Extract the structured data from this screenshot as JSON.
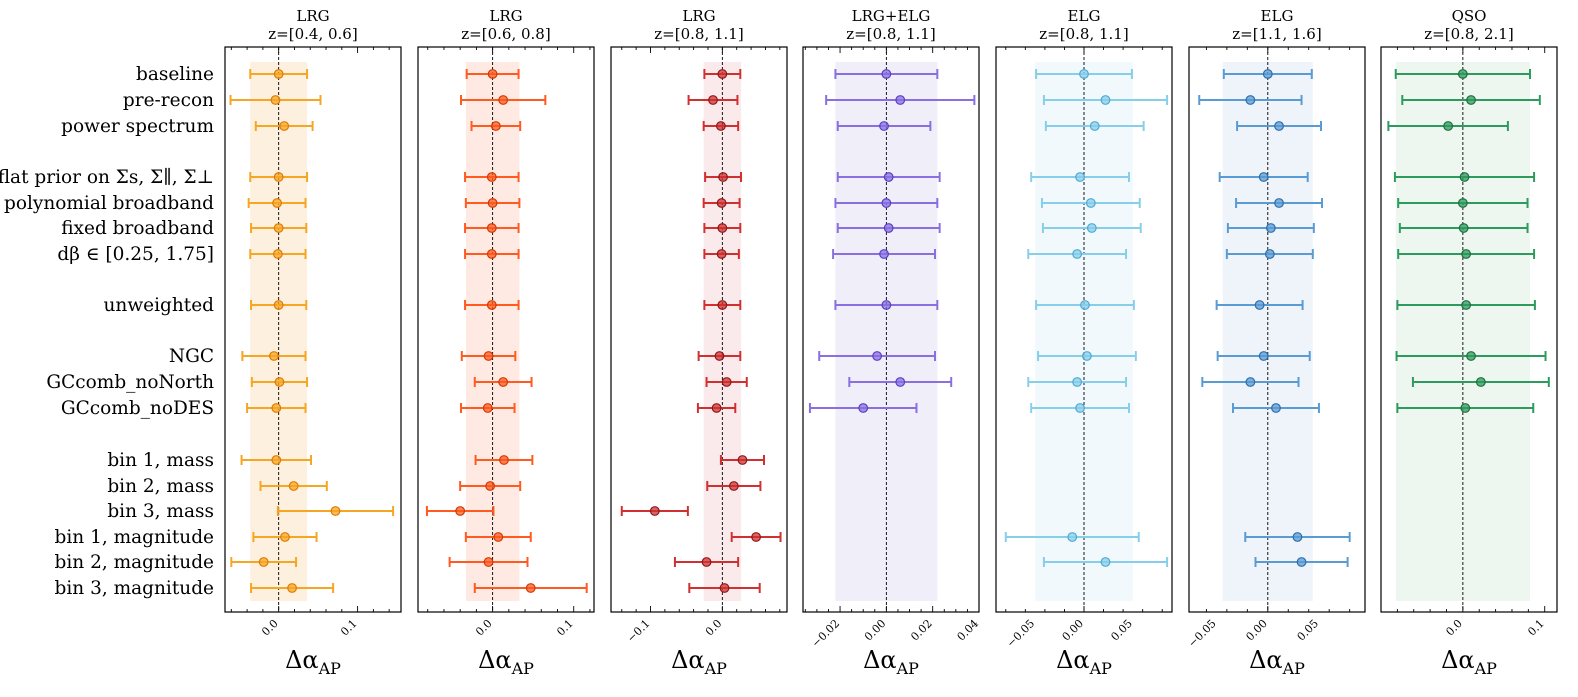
{
  "chart_data": {
    "type": "errorbar",
    "row_labels": [
      "baseline",
      "pre-recon",
      "power spectrum",
      "flat prior on Σs, Σ∥, Σ⊥",
      "polynomial broadband",
      "fixed broadband",
      "dβ ∈ [0.25, 1.75]",
      "unweighted",
      "NGC",
      "GCcomb_noNorth",
      "GCcomb_noDES",
      "bin 1, mass",
      "bin 2, mass",
      "bin 3, mass",
      "bin 1, magnitude",
      "bin 2, magnitude",
      "bin 3, magnitude"
    ],
    "row_groups": [
      0,
      0,
      0,
      1,
      1,
      1,
      1,
      2,
      3,
      3,
      3,
      4,
      4,
      4,
      4,
      4,
      4
    ],
    "xlabel_main": "Δα",
    "xlabel_sub": "AP",
    "panels": [
      {
        "title_line1": "LRG",
        "title_line2": "z=[0.4, 0.6]",
        "color": "#f5a623",
        "edge": "#e07b00",
        "band_color": "#fde3c2",
        "xlim": [
          -0.068,
          0.155
        ],
        "band": [
          -0.036,
          0.036
        ],
        "ticks": [
          0.0,
          0.1
        ],
        "tick_labels": [
          "0.0",
          "0.1"
        ],
        "points": [
          {
            "row": 0,
            "value": 0.0,
            "err": 0.036
          },
          {
            "row": 1,
            "value": -0.004,
            "err": 0.057
          },
          {
            "row": 2,
            "value": 0.007,
            "err": 0.036
          },
          {
            "row": 3,
            "value": 0.0,
            "err": 0.036
          },
          {
            "row": 4,
            "value": -0.002,
            "err": 0.036
          },
          {
            "row": 5,
            "value": 0.0,
            "err": 0.035
          },
          {
            "row": 6,
            "value": -0.001,
            "err": 0.035
          },
          {
            "row": 7,
            "value": 0.0,
            "err": 0.035
          },
          {
            "row": 8,
            "value": -0.006,
            "err": 0.04
          },
          {
            "row": 9,
            "value": 0.001,
            "err": 0.035
          },
          {
            "row": 10,
            "value": -0.003,
            "err": 0.037
          },
          {
            "row": 11,
            "value": -0.003,
            "err": 0.044
          },
          {
            "row": 12,
            "value": 0.019,
            "err": 0.042
          },
          {
            "row": 13,
            "value": 0.072,
            "err": 0.073
          },
          {
            "row": 14,
            "value": 0.008,
            "err": 0.04
          },
          {
            "row": 15,
            "value": -0.019,
            "err": 0.041
          },
          {
            "row": 16,
            "value": 0.017,
            "err": 0.052
          }
        ]
      },
      {
        "title_line1": "LRG",
        "title_line2": "z=[0.6, 0.8]",
        "color": "#ff5a20",
        "edge": "#d13a00",
        "band_color": "#fdd9cc",
        "xlim": [
          -0.092,
          0.125
        ],
        "band": [
          -0.033,
          0.033
        ],
        "ticks": [
          0.0,
          0.1
        ],
        "tick_labels": [
          "0.0",
          "0.1"
        ],
        "points": [
          {
            "row": 0,
            "value": 0.0,
            "err": 0.032
          },
          {
            "row": 1,
            "value": 0.013,
            "err": 0.052
          },
          {
            "row": 2,
            "value": 0.004,
            "err": 0.03
          },
          {
            "row": 3,
            "value": -0.001,
            "err": 0.033
          },
          {
            "row": 4,
            "value": 0.0,
            "err": 0.033
          },
          {
            "row": 5,
            "value": -0.001,
            "err": 0.033
          },
          {
            "row": 6,
            "value": -0.001,
            "err": 0.033
          },
          {
            "row": 7,
            "value": -0.001,
            "err": 0.033
          },
          {
            "row": 8,
            "value": -0.005,
            "err": 0.033
          },
          {
            "row": 9,
            "value": 0.013,
            "err": 0.035
          },
          {
            "row": 10,
            "value": -0.006,
            "err": 0.033
          },
          {
            "row": 11,
            "value": 0.014,
            "err": 0.035
          },
          {
            "row": 12,
            "value": -0.003,
            "err": 0.037
          },
          {
            "row": 13,
            "value": -0.04,
            "err": 0.041
          },
          {
            "row": 14,
            "value": 0.007,
            "err": 0.04
          },
          {
            "row": 15,
            "value": -0.005,
            "err": 0.048
          },
          {
            "row": 16,
            "value": 0.047,
            "err": 0.069
          }
        ]
      },
      {
        "title_line1": "LRG",
        "title_line2": "z=[0.8, 1.1]",
        "color": "#d03030",
        "edge": "#8b1a1a",
        "band_color": "#f6d9dc",
        "xlim": [
          -0.155,
          0.09
        ],
        "band": [
          -0.026,
          0.026
        ],
        "ticks": [
          -0.1,
          0.0
        ],
        "tick_labels": [
          "−0.1",
          "0.0"
        ],
        "points": [
          {
            "row": 0,
            "value": 0.0,
            "err": 0.025
          },
          {
            "row": 1,
            "value": -0.013,
            "err": 0.034
          },
          {
            "row": 2,
            "value": -0.002,
            "err": 0.024
          },
          {
            "row": 3,
            "value": 0.001,
            "err": 0.025
          },
          {
            "row": 4,
            "value": -0.001,
            "err": 0.025
          },
          {
            "row": 5,
            "value": 0.0,
            "err": 0.025
          },
          {
            "row": 6,
            "value": -0.001,
            "err": 0.024
          },
          {
            "row": 7,
            "value": 0.0,
            "err": 0.025
          },
          {
            "row": 8,
            "value": -0.004,
            "err": 0.029
          },
          {
            "row": 9,
            "value": 0.006,
            "err": 0.028
          },
          {
            "row": 10,
            "value": -0.008,
            "err": 0.026
          },
          {
            "row": 11,
            "value": 0.028,
            "err": 0.03
          },
          {
            "row": 12,
            "value": 0.016,
            "err": 0.037
          },
          {
            "row": 13,
            "value": -0.094,
            "err": 0.046
          },
          {
            "row": 14,
            "value": 0.047,
            "err": 0.034
          },
          {
            "row": 15,
            "value": -0.022,
            "err": 0.044
          },
          {
            "row": 16,
            "value": 0.003,
            "err": 0.049
          }
        ]
      },
      {
        "title_line1": "LRG+ELG",
        "title_line2": "z=[0.8, 1.1]",
        "color": "#8a6fe0",
        "edge": "#5b3fc4",
        "band_color": "#e4e0f4",
        "xlim": [
          -0.036,
          0.04
        ],
        "band": [
          -0.022,
          0.022
        ],
        "ticks": [
          -0.02,
          0.0,
          0.02,
          0.04
        ],
        "tick_labels": [
          "−0.02",
          "0.00",
          "0.02",
          "0.04"
        ],
        "points": [
          {
            "row": 0,
            "value": 0.0,
            "err": 0.022
          },
          {
            "row": 1,
            "value": 0.006,
            "err": 0.032
          },
          {
            "row": 2,
            "value": -0.001,
            "err": 0.02
          },
          {
            "row": 3,
            "value": 0.001,
            "err": 0.022
          },
          {
            "row": 4,
            "value": 0.0,
            "err": 0.022
          },
          {
            "row": 5,
            "value": 0.001,
            "err": 0.022
          },
          {
            "row": 6,
            "value": -0.001,
            "err": 0.022
          },
          {
            "row": 7,
            "value": 0.0,
            "err": 0.022
          },
          {
            "row": 8,
            "value": -0.004,
            "err": 0.025
          },
          {
            "row": 9,
            "value": 0.006,
            "err": 0.022
          },
          {
            "row": 10,
            "value": -0.01,
            "err": 0.023
          }
        ]
      },
      {
        "title_line1": "ELG",
        "title_line2": "z=[0.8, 1.1]",
        "color": "#87ceeb",
        "edge": "#4fa9d3",
        "band_color": "#e5f4fa",
        "xlim": [
          -0.09,
          0.09
        ],
        "band": [
          -0.05,
          0.05
        ],
        "ticks": [
          -0.05,
          0.0,
          0.05
        ],
        "tick_labels": [
          "−0.05",
          "0.00",
          "0.05"
        ],
        "points": [
          {
            "row": 0,
            "value": 0.0,
            "err": 0.049
          },
          {
            "row": 1,
            "value": 0.022,
            "err": 0.063
          },
          {
            "row": 2,
            "value": 0.011,
            "err": 0.05
          },
          {
            "row": 3,
            "value": -0.004,
            "err": 0.05
          },
          {
            "row": 4,
            "value": 0.007,
            "err": 0.05
          },
          {
            "row": 5,
            "value": 0.008,
            "err": 0.05
          },
          {
            "row": 6,
            "value": -0.007,
            "err": 0.05
          },
          {
            "row": 7,
            "value": 0.001,
            "err": 0.05
          },
          {
            "row": 8,
            "value": 0.003,
            "err": 0.05
          },
          {
            "row": 9,
            "value": -0.007,
            "err": 0.05
          },
          {
            "row": 10,
            "value": -0.004,
            "err": 0.05
          },
          {
            "row": 14,
            "value": -0.012,
            "err": 0.068
          },
          {
            "row": 15,
            "value": 0.022,
            "err": 0.063
          }
        ]
      },
      {
        "title_line1": "ELG",
        "title_line2": "z=[1.1, 1.6]",
        "color": "#5a9bd4",
        "edge": "#2f6ea8",
        "band_color": "#e0ebf6",
        "xlim": [
          -0.077,
          0.095
        ],
        "band": [
          -0.044,
          0.044
        ],
        "ticks": [
          -0.05,
          0.0,
          0.05
        ],
        "tick_labels": [
          "−0.05",
          "0.00",
          "0.05"
        ],
        "points": [
          {
            "row": 0,
            "value": 0.0,
            "err": 0.043
          },
          {
            "row": 1,
            "value": -0.017,
            "err": 0.05
          },
          {
            "row": 2,
            "value": 0.011,
            "err": 0.041
          },
          {
            "row": 3,
            "value": -0.004,
            "err": 0.043
          },
          {
            "row": 4,
            "value": 0.011,
            "err": 0.042
          },
          {
            "row": 5,
            "value": 0.003,
            "err": 0.042
          },
          {
            "row": 6,
            "value": 0.002,
            "err": 0.042
          },
          {
            "row": 7,
            "value": -0.008,
            "err": 0.042
          },
          {
            "row": 8,
            "value": -0.004,
            "err": 0.045
          },
          {
            "row": 9,
            "value": -0.017,
            "err": 0.047
          },
          {
            "row": 10,
            "value": 0.008,
            "err": 0.042
          },
          {
            "row": 14,
            "value": 0.029,
            "err": 0.051
          },
          {
            "row": 15,
            "value": 0.033,
            "err": 0.045
          }
        ]
      },
      {
        "title_line1": "QSO",
        "title_line2": "z=[0.8, 2.1]",
        "color": "#2e9b5e",
        "edge": "#1e6e40",
        "band_color": "#e0efe4",
        "xlim": [
          -0.1,
          0.115
        ],
        "band": [
          -0.082,
          0.082
        ],
        "ticks": [
          0.0,
          0.1
        ],
        "tick_labels": [
          "0.0",
          "0.1"
        ],
        "points": [
          {
            "row": 0,
            "value": 0.0,
            "err": 0.082
          },
          {
            "row": 1,
            "value": 0.01,
            "err": 0.084
          },
          {
            "row": 2,
            "value": -0.018,
            "err": 0.073
          },
          {
            "row": 3,
            "value": 0.002,
            "err": 0.085
          },
          {
            "row": 4,
            "value": 0.0,
            "err": 0.079
          },
          {
            "row": 5,
            "value": 0.001,
            "err": 0.078
          },
          {
            "row": 6,
            "value": 0.004,
            "err": 0.083
          },
          {
            "row": 7,
            "value": 0.004,
            "err": 0.084
          },
          {
            "row": 8,
            "value": 0.01,
            "err": 0.091
          },
          {
            "row": 9,
            "value": 0.022,
            "err": 0.083
          },
          {
            "row": 10,
            "value": 0.003,
            "err": 0.083
          }
        ]
      }
    ]
  }
}
